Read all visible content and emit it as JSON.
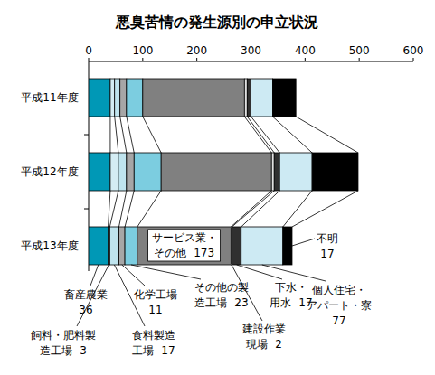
{
  "chart_data": {
    "type": "bar",
    "title": "悪臭苦情の発生源別の申立状況",
    "orientation": "horizontal",
    "stacked": true,
    "data_labels": true,
    "categories": [
      "平成11年度",
      "平成12年度",
      "平成13年度"
    ],
    "xlim": [
      0,
      600
    ],
    "xticks": [
      0,
      100,
      200,
      300,
      400,
      500,
      600
    ],
    "series": [
      {
        "name": "畜産農業",
        "color": "#0098b6",
        "values": [
          40,
          40,
          36
        ]
      },
      {
        "name": "飼料・肥料製造工場",
        "color": "#d4edf4",
        "values": [
          8,
          15,
          3
        ]
      },
      {
        "name": "食料製造工場",
        "color": "#bfe4ee",
        "values": [
          10,
          15,
          17
        ]
      },
      {
        "name": "化学工場",
        "color": "#a6a6a6",
        "values": [
          12,
          14,
          11
        ]
      },
      {
        "name": "その他の製造工場",
        "color": "#7ccde0",
        "values": [
          30,
          50,
          23
        ]
      },
      {
        "name": "サービス業・その他",
        "color": "#808080",
        "values": [
          188,
          204,
          173
        ]
      },
      {
        "name": "建設作業現場",
        "color": "#e0e0e0",
        "values": [
          5,
          5,
          2
        ]
      },
      {
        "name": "下水・用水",
        "color": "#303030",
        "values": [
          7,
          10,
          17
        ]
      },
      {
        "name": "個人住宅・アパート・寮",
        "color": "#cdeaf3",
        "values": [
          40,
          60,
          77
        ]
      },
      {
        "name": "不明",
        "color": "#000000",
        "values": [
          43,
          85,
          17
        ]
      }
    ]
  }
}
